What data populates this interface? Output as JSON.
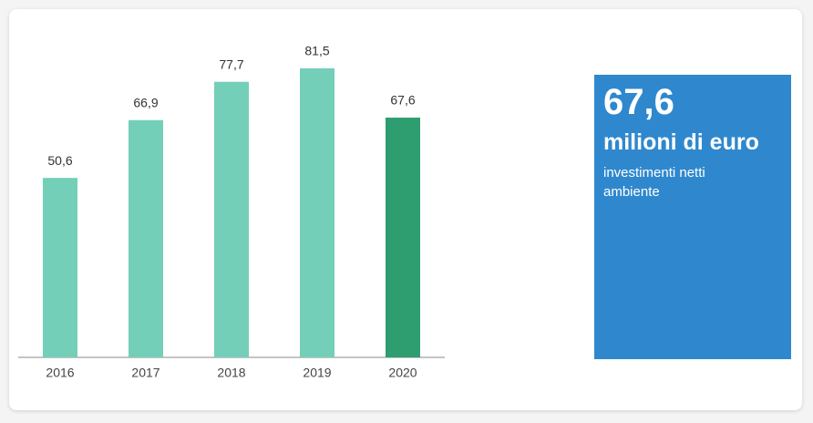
{
  "chart_data": {
    "type": "bar",
    "categories": [
      "2016",
      "2017",
      "2018",
      "2019",
      "2020"
    ],
    "values": [
      50.6,
      66.9,
      77.7,
      81.5,
      67.6
    ],
    "value_labels": [
      "50,6",
      "66,9",
      "77,7",
      "81,5",
      "67,6"
    ],
    "colors": [
      "#74cfb8",
      "#74cfb8",
      "#74cfb8",
      "#74cfb8",
      "#2e9d6f"
    ],
    "ylim": [
      0,
      100
    ]
  },
  "callout": {
    "value": "67,6",
    "unit": "milioni di euro",
    "caption": "investimenti netti ambiente",
    "color": "#2f88cd"
  }
}
